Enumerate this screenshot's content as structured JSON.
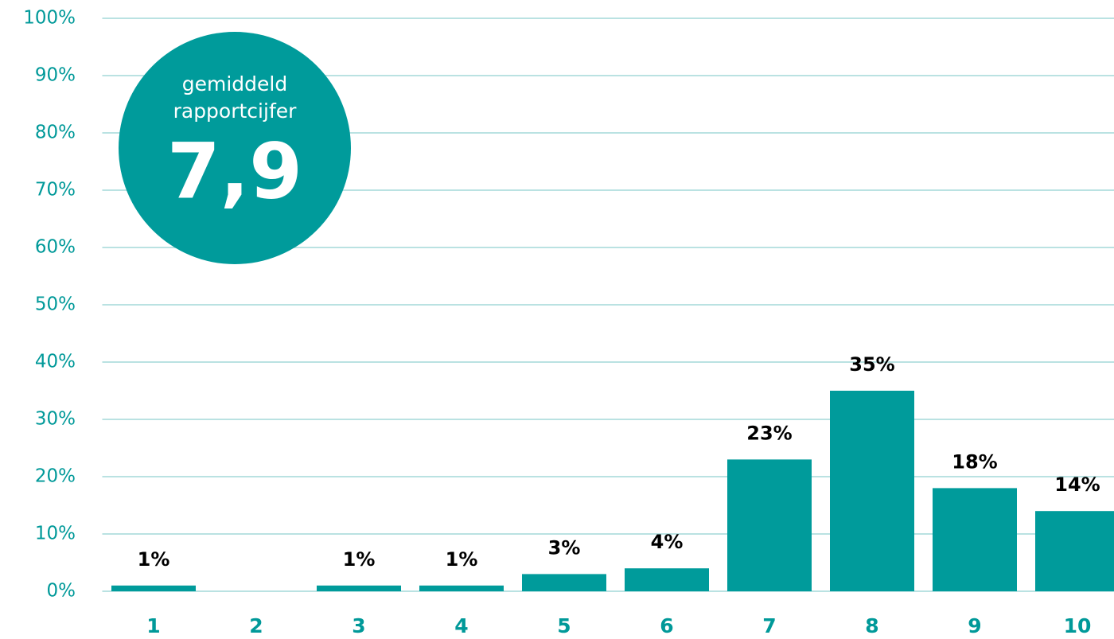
{
  "chart_data": {
    "type": "bar",
    "categories": [
      "1",
      "2",
      "3",
      "4",
      "5",
      "6",
      "7",
      "8",
      "9",
      "10"
    ],
    "values": [
      1,
      0,
      1,
      1,
      3,
      4,
      23,
      35,
      18,
      14
    ],
    "value_labels": [
      "1%",
      null,
      "1%",
      "1%",
      "3%",
      "4%",
      "23%",
      "35%",
      "18%",
      "14%"
    ],
    "color": "#009b9b",
    "ylim": [
      0,
      100
    ],
    "yticks": [
      {
        "value": 0,
        "label": "0%"
      },
      {
        "value": 10,
        "label": "10%"
      },
      {
        "value": 20,
        "label": "20%"
      },
      {
        "value": 30,
        "label": "30%"
      },
      {
        "value": 40,
        "label": "40%"
      },
      {
        "value": 50,
        "label": "50%"
      },
      {
        "value": 60,
        "label": "60%"
      },
      {
        "value": 70,
        "label": "70%"
      },
      {
        "value": 80,
        "label": "80%"
      },
      {
        "value": 90,
        "label": "90%"
      },
      {
        "value": 100,
        "label": "100%"
      }
    ],
    "grid": true,
    "annotation": {
      "lines": [
        "gemiddeld",
        "rapportcijfer"
      ],
      "value": "7,9"
    }
  }
}
